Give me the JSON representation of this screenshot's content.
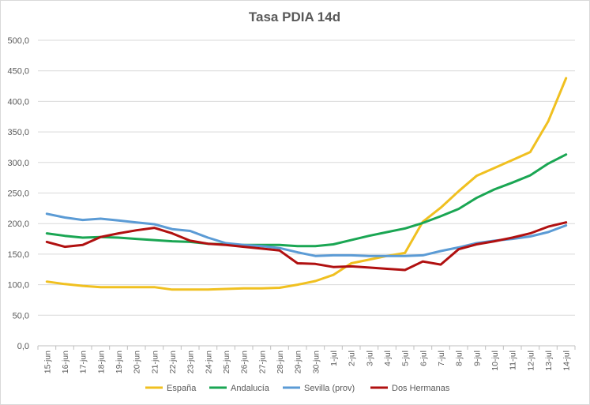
{
  "chart_data": {
    "type": "line",
    "title": "Tasa PDIA 14d",
    "xlabel": "",
    "ylabel": "",
    "ylim": [
      0,
      500
    ],
    "yticks": [
      "0,0",
      "50,0",
      "100,0",
      "150,0",
      "200,0",
      "250,0",
      "300,0",
      "350,0",
      "400,0",
      "450,0",
      "500,0"
    ],
    "grid": true,
    "legend_position": "bottom",
    "categories": [
      "15-jun",
      "16-jun",
      "17-jun",
      "18-jun",
      "19-jun",
      "20-jun",
      "21-jun",
      "22-jun",
      "23-jun",
      "24-jun",
      "25-jun",
      "26-jun",
      "27-jun",
      "28-jun",
      "29-jun",
      "30-jun",
      "1-jul",
      "2-jul",
      "3-jul",
      "4-jul",
      "5-jul",
      "6-jul",
      "7-jul",
      "8-jul",
      "9-jul",
      "10-jul",
      "11-jul",
      "12-jul",
      "13-jul",
      "14-jul"
    ],
    "series": [
      {
        "name": "España",
        "color": "#f0c020",
        "values": [
          105,
          101,
          98,
          96,
          96,
          96,
          96,
          92,
          92,
          92,
          93,
          94,
          94,
          95,
          100,
          106,
          116,
          135,
          141,
          147,
          152,
          203,
          226,
          253,
          278,
          291,
          304,
          317,
          367,
          438
        ]
      },
      {
        "name": "Andalucía",
        "color": "#1aa653",
        "values": [
          184,
          180,
          177,
          178,
          177,
          175,
          173,
          171,
          170,
          167,
          166,
          165,
          165,
          165,
          163,
          163,
          166,
          173,
          180,
          186,
          192,
          201,
          212,
          224,
          242,
          256,
          267,
          279,
          298,
          313
        ]
      },
      {
        "name": "Sevilla (prov)",
        "color": "#5b9bd5",
        "values": [
          216,
          210,
          206,
          208,
          205,
          202,
          199,
          191,
          188,
          177,
          168,
          165,
          163,
          160,
          153,
          147,
          148,
          148,
          147,
          147,
          147,
          148,
          155,
          161,
          168,
          172,
          175,
          179,
          186,
          197
        ]
      },
      {
        "name": "Dos Hermanas",
        "color": "#b01010",
        "values": [
          170,
          162,
          165,
          178,
          184,
          189,
          193,
          184,
          172,
          167,
          165,
          162,
          159,
          156,
          135,
          134,
          129,
          130,
          128,
          126,
          124,
          138,
          133,
          158,
          166,
          171,
          177,
          184,
          195,
          202
        ]
      }
    ]
  }
}
